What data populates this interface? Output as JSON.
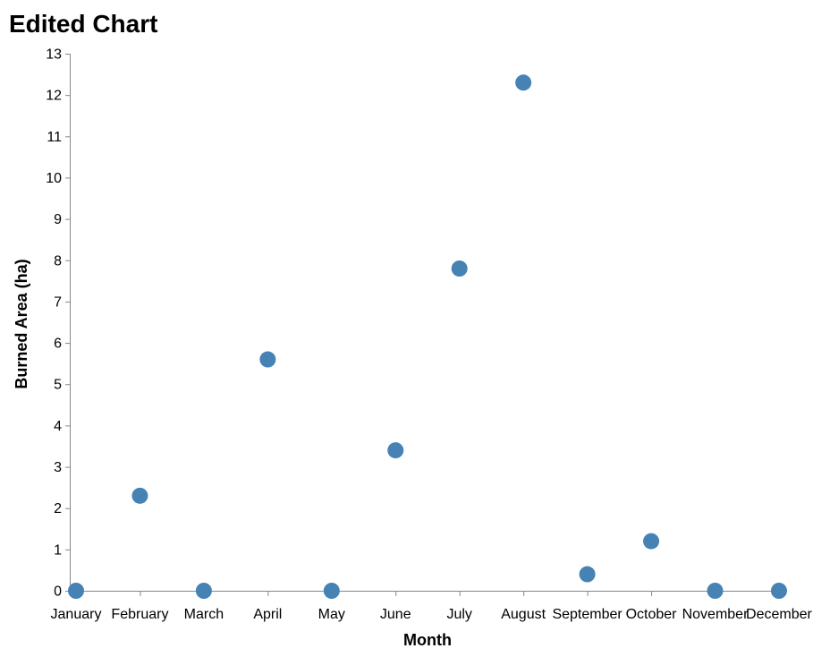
{
  "chart_data": {
    "type": "scatter",
    "title": "Edited Chart",
    "xlabel": "Month",
    "ylabel": "Burned Area (ha)",
    "categories": [
      "January",
      "February",
      "March",
      "April",
      "May",
      "June",
      "July",
      "August",
      "September",
      "October",
      "November",
      "December"
    ],
    "values": [
      0,
      2.3,
      0,
      5.6,
      0,
      3.4,
      7.8,
      12.3,
      0.4,
      1.2,
      0,
      0
    ],
    "ylim": [
      0,
      13
    ],
    "yticks": [
      "0",
      "1",
      "2",
      "3",
      "4",
      "5",
      "6",
      "7",
      "8",
      "9",
      "10",
      "11",
      "12",
      "13"
    ],
    "grid": false,
    "legend": "none",
    "point_color": "#4682b4"
  }
}
